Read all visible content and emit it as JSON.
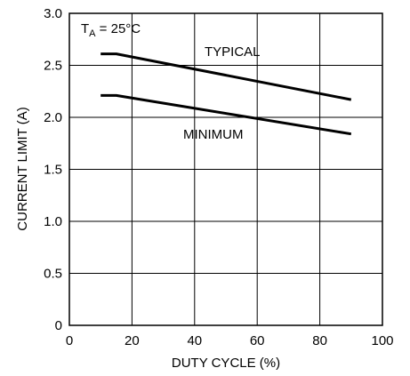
{
  "chart_data": {
    "type": "line",
    "title": "",
    "xlabel": "DUTY CYCLE (%)",
    "ylabel": "CURRENT LIMIT (A)",
    "xlim": [
      0,
      100
    ],
    "ylim": [
      0,
      3.0
    ],
    "grid": true,
    "x_ticks": [
      0,
      20,
      40,
      60,
      80,
      100
    ],
    "y_ticks": [
      0,
      0.5,
      1.0,
      1.5,
      2.0,
      2.5,
      3.0
    ],
    "x_tick_labels": [
      "0",
      "20",
      "40",
      "60",
      "80",
      "100"
    ],
    "y_tick_labels": [
      "0",
      "0.5",
      "1.0",
      "1.5",
      "2.0",
      "2.5",
      "3.0"
    ],
    "condition": {
      "prefix": "T",
      "subscript": "A",
      "suffix": " = 25°C"
    },
    "series": [
      {
        "name": "TYPICAL",
        "x": [
          10,
          15,
          90
        ],
        "y": [
          2.61,
          2.61,
          2.17
        ],
        "color": "#000000"
      },
      {
        "name": "MINIMUM",
        "x": [
          10,
          15,
          90
        ],
        "y": [
          2.21,
          2.21,
          1.84
        ],
        "color": "#000000"
      }
    ]
  }
}
